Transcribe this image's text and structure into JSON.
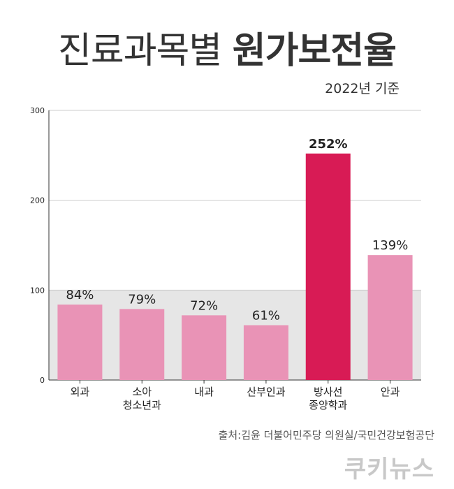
{
  "title": {
    "light": "진료과목별",
    "bold": "원가보전율"
  },
  "subtitle": "2022년 기준",
  "source": "출처:김윤 더불어민주당 의원실/국민건강보험공단",
  "logo": "쿠키뉴스",
  "colors": {
    "bar": "#e993b6",
    "highlight": "#d81b55",
    "band": "#e6e6e6",
    "grid": "#cccccc",
    "axis": "#333333",
    "text": "#222222"
  },
  "chart_data": {
    "type": "bar",
    "categories": [
      [
        "외과"
      ],
      [
        "소아",
        "청소년과"
      ],
      [
        "내과"
      ],
      [
        "산부인과"
      ],
      [
        "방사선",
        "종양학과"
      ],
      [
        "안과"
      ]
    ],
    "values": [
      84,
      79,
      72,
      61,
      252,
      139
    ],
    "value_labels": [
      "84%",
      "79%",
      "72%",
      "61%",
      "252%",
      "139%"
    ],
    "highlight_index": 4,
    "ylim": [
      0,
      300
    ],
    "yticks": [
      0,
      100,
      200,
      300
    ],
    "reference_band": [
      0,
      100
    ],
    "grid": true
  }
}
